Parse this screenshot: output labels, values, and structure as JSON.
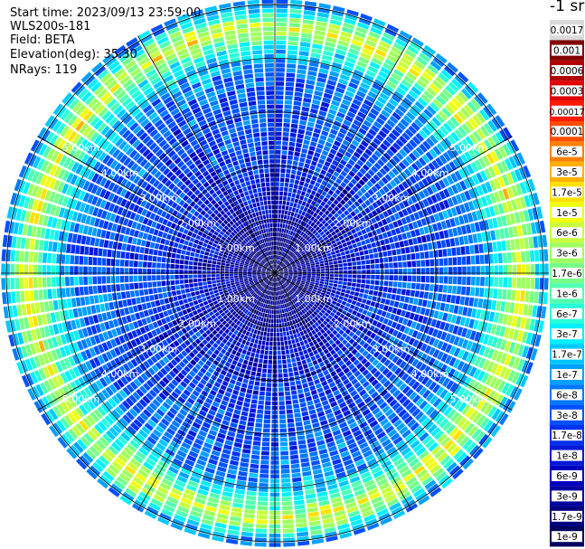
{
  "header": {
    "start_time": "Start time: 2023/09/13 23:59:00",
    "instrument": "WLS200s-181",
    "field": "Field: BETA",
    "elevation": "Elevation(deg): 35.30",
    "nrays": "NRays: 119"
  },
  "chart_data": {
    "type": "heatmap",
    "projection": "polar-ppi",
    "field": "BETA",
    "elevation_deg": 35.3,
    "n_rays": 119,
    "max_range_km": 5.1,
    "range_rings_km": [
      1,
      2,
      3,
      4,
      5
    ],
    "range_ring_labels": [
      "1.00km",
      "2.00km",
      "3.00km",
      "4.00km",
      "5.00km"
    ],
    "spokes_deg": [
      0,
      30,
      60,
      90,
      120,
      150,
      180,
      210,
      240,
      270,
      300,
      330
    ],
    "range_profile": [
      {
        "range_km": 0.0,
        "beta": 1.5e-09
      },
      {
        "range_km": 0.5,
        "beta": 3e-09
      },
      {
        "range_km": 1.0,
        "beta": 6e-09
      },
      {
        "range_km": 1.5,
        "beta": 1.2e-08
      },
      {
        "range_km": 2.0,
        "beta": 2e-08
      },
      {
        "range_km": 2.5,
        "beta": 3e-08
      },
      {
        "range_km": 3.0,
        "beta": 4e-08
      },
      {
        "range_km": 3.5,
        "beta": 5e-08
      },
      {
        "range_km": 3.9,
        "beta": 1.2e-07
      },
      {
        "range_km": 4.3,
        "beta": 1e-06
      },
      {
        "range_km": 4.55,
        "beta": 1e-05
      },
      {
        "range_km": 4.75,
        "beta": 3e-06
      },
      {
        "range_km": 5.0,
        "beta": 1e-07
      }
    ],
    "colorbar": {
      "title": "-1 sr",
      "labels": [
        "0.0017",
        "0.001",
        "0.0006",
        "0.0003",
        "0.00017",
        "0.0001",
        "6e-5",
        "3e-5",
        "1.7e-5",
        "1e-5",
        "6e-6",
        "3e-6",
        "1.7e-6",
        "1e-6",
        "6e-7",
        "3e-7",
        "1.7e-7",
        "1e-7",
        "6e-8",
        "3e-8",
        "1.7e-8",
        "1e-8",
        "6e-9",
        "3e-9",
        "1.7e-9",
        "1e-9"
      ],
      "colors": [
        "#d9d9d9",
        "#800000",
        "#b00000",
        "#e00000",
        "#ff1a00",
        "#ff4d00",
        "#ff8000",
        "#ffb000",
        "#ffe000",
        "#f0ff10",
        "#c8ff3c",
        "#a0ff60",
        "#78ff88",
        "#50ffb0",
        "#28ffd8",
        "#00f0ff",
        "#00c8ff",
        "#00a0ff",
        "#0078ff",
        "#0050ff",
        "#0030f0",
        "#0018d8",
        "#0000c0",
        "#0000a0",
        "#000080",
        "#000060"
      ],
      "scale": "log"
    }
  }
}
